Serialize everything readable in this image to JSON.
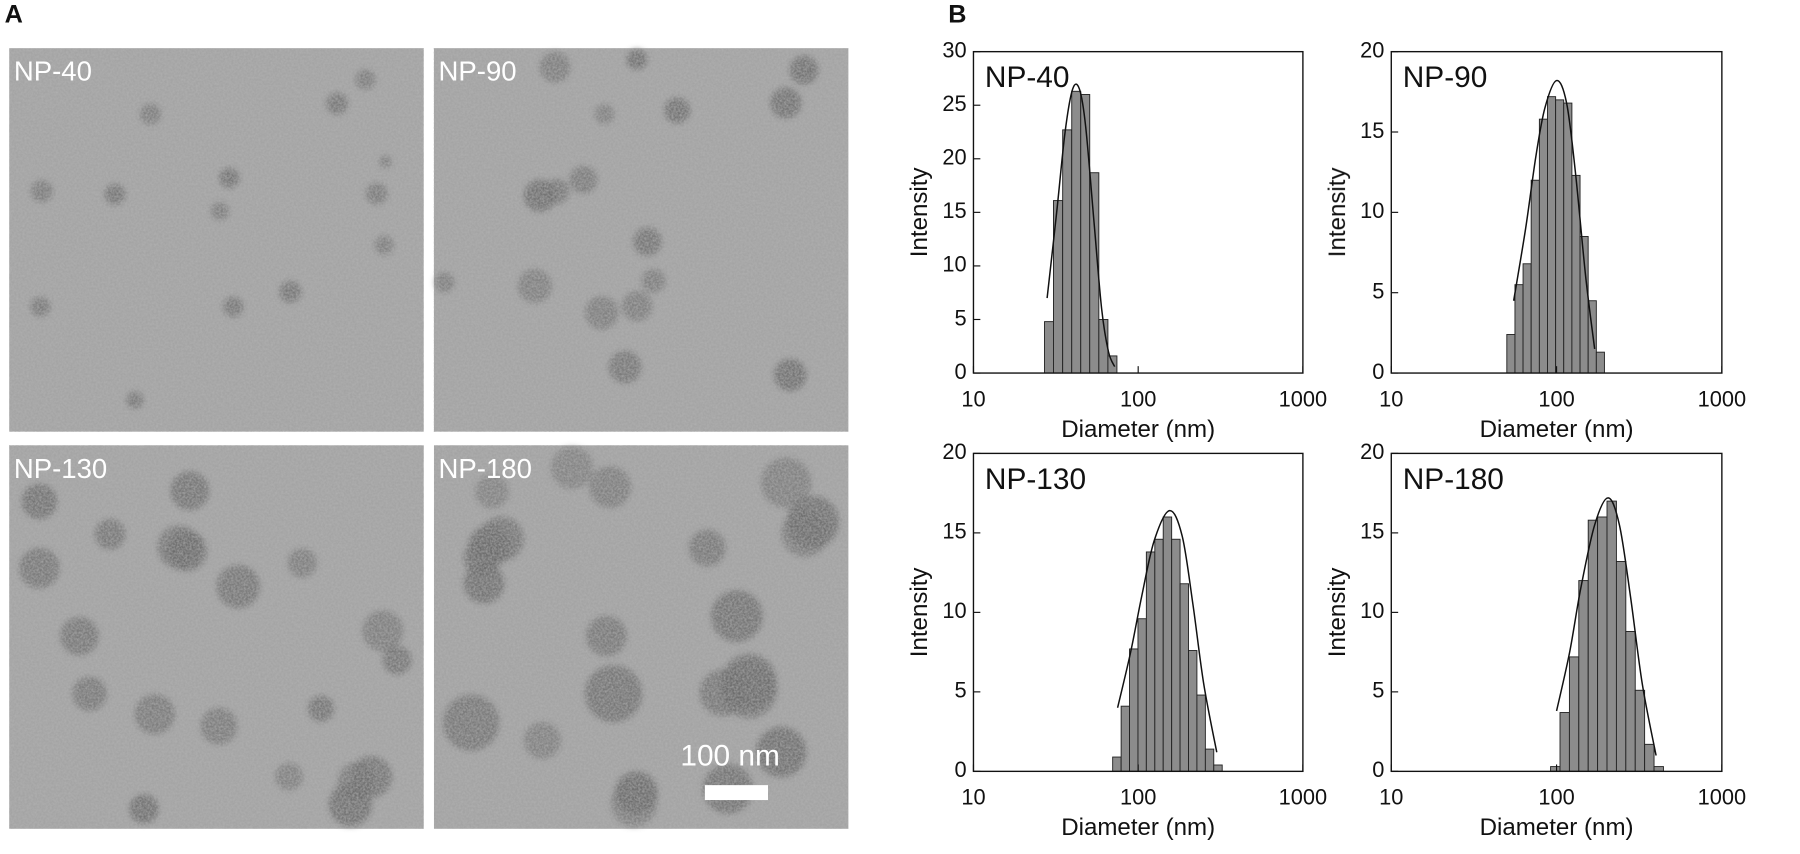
{
  "panel_labels": [
    "A",
    "B"
  ],
  "images": [
    {
      "label": "NP-40"
    },
    {
      "label": "NP-90"
    },
    {
      "label": "NP-130"
    },
    {
      "label": "NP-180"
    }
  ],
  "scale_bar": "100 nm",
  "chart_data": [
    {
      "type": "histogram",
      "title": "NP-40",
      "xlabel": "Diameter (nm)",
      "ylabel": "Intensity",
      "xscale": "log",
      "bins": [
        27,
        30.6,
        34.8,
        39.5,
        44.8,
        50.8,
        57.7,
        65.5,
        74.3
      ],
      "values": [
        4.8,
        16.1,
        22.7,
        26.3,
        26,
        18.7,
        5,
        1.6
      ],
      "color": "#8c8c8c",
      "fit": {
        "x": [
          28,
          32,
          36,
          40,
          44,
          48,
          54,
          60,
          66,
          72
        ],
        "values": [
          7,
          15,
          22.5,
          26.5,
          26.5,
          23,
          14,
          6,
          2,
          0.6
        ]
      },
      "xlim": [
        10,
        1000
      ],
      "xticks": [
        10,
        100,
        1000
      ],
      "ylim": [
        0,
        30
      ],
      "yticks": [
        0,
        5,
        10,
        15,
        20,
        25,
        30
      ]
    },
    {
      "type": "histogram",
      "title": "NP-90",
      "xlabel": "Diameter (nm)",
      "ylabel": "Intensity",
      "xscale": "log",
      "bins": [
        50,
        56,
        62.7,
        70.2,
        78.7,
        88.1,
        98.7,
        110.5,
        123.8,
        138.7,
        155.3,
        174,
        194.8
      ],
      "values": [
        2.4,
        5.5,
        6.8,
        12,
        15.8,
        17.2,
        17,
        16.8,
        12.3,
        8.5,
        4.5,
        1.3
      ],
      "color": "#8c8c8c",
      "fit": {
        "x": [
          55,
          65,
          75,
          85,
          100,
          115,
          130,
          150,
          170
        ],
        "values": [
          4.5,
          9,
          13.5,
          16.5,
          18.2,
          16.8,
          12.5,
          6,
          1.5
        ]
      },
      "xlim": [
        10,
        1000
      ],
      "xticks": [
        10,
        100,
        1000
      ],
      "ylim": [
        0,
        20
      ],
      "yticks": [
        0,
        5,
        10,
        15,
        20
      ]
    },
    {
      "type": "histogram",
      "title": "NP-130",
      "xlabel": "Diameter (nm)",
      "ylabel": "Intensity",
      "xscale": "log",
      "bins": [
        70,
        78.8,
        88.6,
        99.7,
        112.1,
        126.2,
        141.9,
        159.7,
        179.6,
        202.1,
        227.3,
        255.8,
        287.7,
        323.7
      ],
      "values": [
        0.9,
        4.1,
        7.7,
        9.6,
        13.8,
        14.6,
        16,
        14.6,
        11.8,
        7.6,
        4.8,
        1.4,
        0.4
      ],
      "color": "#8c8c8c",
      "fit": {
        "x": [
          75,
          90,
          105,
          125,
          155,
          185,
          215,
          250,
          300
        ],
        "values": [
          4,
          7.5,
          11,
          14.5,
          16.4,
          14.8,
          10.5,
          5.5,
          1.2
        ]
      },
      "xlim": [
        10,
        1000
      ],
      "xticks": [
        10,
        100,
        1000
      ],
      "ylim": [
        0,
        20
      ],
      "yticks": [
        0,
        5,
        10,
        15,
        20
      ]
    },
    {
      "type": "histogram",
      "title": "NP-180",
      "xlabel": "Diameter (nm)",
      "ylabel": "Intensity",
      "xscale": "log",
      "bins": [
        92,
        104.9,
        119.6,
        136.3,
        155.4,
        177.1,
        201.9,
        230.2,
        262.4,
        299.2,
        341,
        388.8,
        443.2
      ],
      "values": [
        0.3,
        3.7,
        7.2,
        12,
        15.8,
        16,
        17,
        13.2,
        8.8,
        5.1,
        1.7,
        0.3
      ],
      "color": "#8c8c8c",
      "fit": {
        "x": [
          100,
          120,
          140,
          170,
          205,
          240,
          280,
          330,
          400
        ],
        "values": [
          3.8,
          7.5,
          11.5,
          15.5,
          17.2,
          15.5,
          11,
          5.5,
          1
        ]
      },
      "xlim": [
        10,
        1000
      ],
      "xticks": [
        10,
        100,
        1000
      ],
      "ylim": [
        0,
        20
      ],
      "yticks": [
        0,
        5,
        10,
        15,
        20
      ]
    }
  ]
}
